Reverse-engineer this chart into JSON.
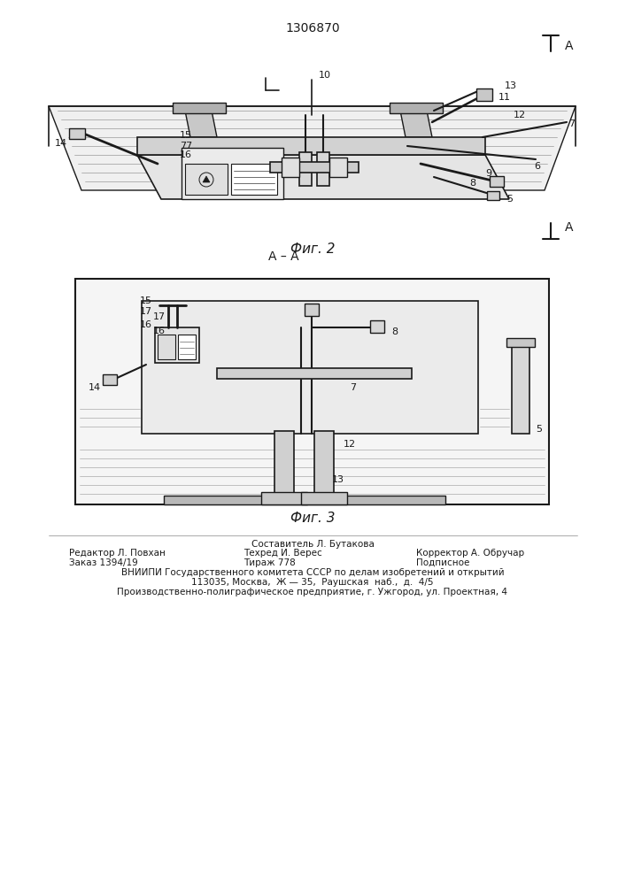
{
  "title": "1306870",
  "fig2_label": "Фиг. 2",
  "fig3_label": "Фиг. 3",
  "fig3_section": "А – А",
  "footer_line1": "Составитель Л. Бутакова",
  "footer_col1_line1": "Редактор Л. Повхан",
  "footer_col1_line2": "Заказ 1394/19",
  "footer_col2_line1": "Техред И. Верес",
  "footer_col2_line2": "Тираж 778",
  "footer_col3_line1": "Корректор А. Обручар",
  "footer_col3_line2": "Подписное",
  "footer_vniipи": "ВНИИПИ Государственного комитета СССР по делам изобретений и открытий",
  "footer_address1": "113035, Москва,  Ж — 35,  Раушская  наб.,  д.  4/5",
  "footer_address2": "Производственно-полиграфическое предприятие, г. Ужгород, ул. Проектная, 4",
  "bg_color": "#ffffff",
  "line_color": "#1a1a1a",
  "text_color": "#1a1a1a"
}
